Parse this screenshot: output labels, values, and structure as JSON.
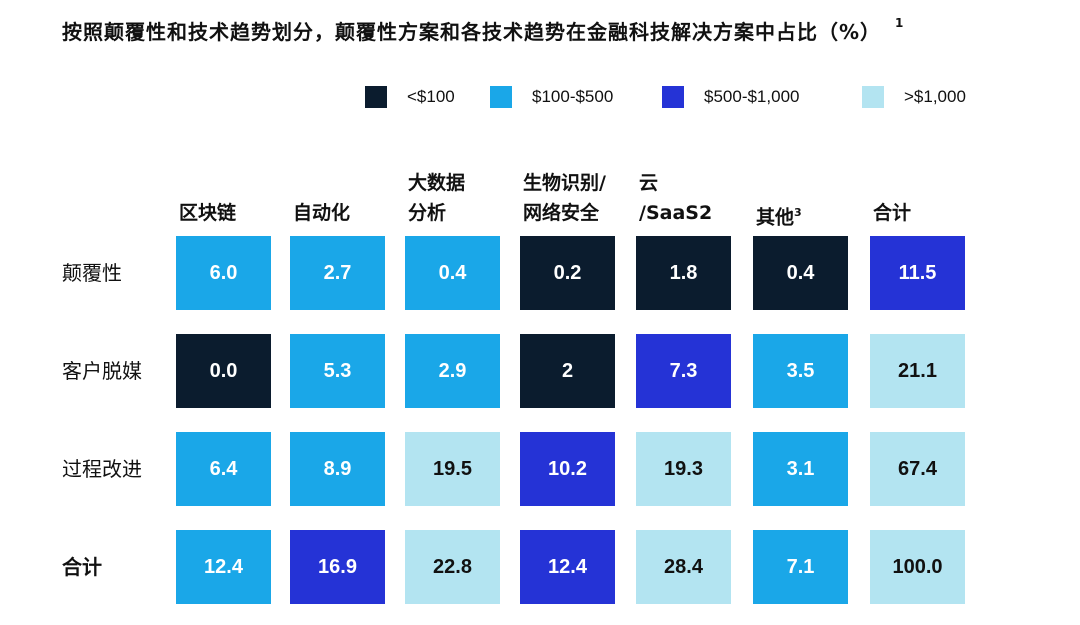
{
  "title": "按照颠覆性和技术趋势划分，颠覆性方案和各技术趋势在金融科技解决方案中占比（%）",
  "title_footnote": "1",
  "colors": {
    "<$100": "#0b1c2e",
    "$100-$500": "#1aa7e8",
    "$500-$1,000": "#2533d6",
    ">$1,000": "#b3e4f1"
  },
  "chart_data": {
    "type": "heatmap",
    "legend": {
      "position": "top-right",
      "entries": [
        "<$100",
        "$100-$500",
        "$500-$1,000",
        ">$1,000"
      ]
    },
    "columns": [
      {
        "line1": "",
        "line2": "区块链",
        "sup": ""
      },
      {
        "line1": "",
        "line2": "自动化",
        "sup": ""
      },
      {
        "line1": "大数据",
        "line2": "分析",
        "sup": ""
      },
      {
        "line1": "生物识别/",
        "line2": "网络安全",
        "sup": ""
      },
      {
        "line1": "云",
        "line2": "/SaaS2",
        "sup": ""
      },
      {
        "line1": "",
        "line2": "其他",
        "sup": "3"
      },
      {
        "line1": "",
        "line2": "合计",
        "sup": ""
      }
    ],
    "rows": [
      {
        "label": "颠覆性",
        "bold": false
      },
      {
        "label": "客户脱媒",
        "bold": false
      },
      {
        "label": "过程改进",
        "bold": false
      },
      {
        "label": "合计",
        "bold": true
      }
    ],
    "values": [
      [
        "6.0",
        "2.7",
        "0.4",
        "0.2",
        "1.8",
        "0.4",
        "11.5"
      ],
      [
        "0.0",
        "5.3",
        "2.9",
        "2",
        "7.3",
        "3.5",
        "21.1"
      ],
      [
        "6.4",
        "8.9",
        "19.5",
        "10.2",
        "19.3",
        "3.1",
        "67.4"
      ],
      [
        "12.4",
        "16.9",
        "22.8",
        "12.4",
        "28.4",
        "7.1",
        "100.0"
      ]
    ],
    "categories": [
      [
        "$100-$500",
        "$100-$500",
        "$100-$500",
        "<$100",
        "<$100",
        "<$100",
        "$500-$1,000"
      ],
      [
        "<$100",
        "$100-$500",
        "$100-$500",
        "<$100",
        "$500-$1,000",
        "$100-$500",
        ">$1,000"
      ],
      [
        "$100-$500",
        "$100-$500",
        ">$1,000",
        "$500-$1,000",
        ">$1,000",
        "$100-$500",
        ">$1,000"
      ],
      [
        "$100-$500",
        "$500-$1,000",
        ">$1,000",
        "$500-$1,000",
        ">$1,000",
        "$100-$500",
        ">$1,000"
      ]
    ]
  }
}
